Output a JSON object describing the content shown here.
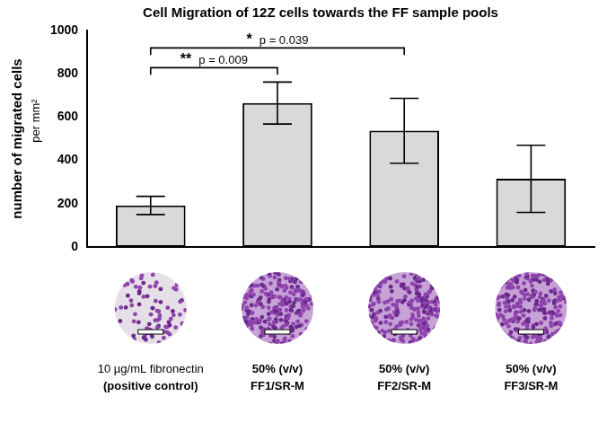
{
  "chart_data": {
    "type": "bar",
    "title": "Cell Migration of 12Z cells towards the FF sample pools",
    "y_label": "number of migrated cells",
    "y_label_unit": "per mm²",
    "categories": [
      [
        "10 µg/mL fibronectin",
        "(positive control)"
      ],
      [
        "50% (v/v)",
        "FF1/SR-M"
      ],
      [
        "50% (v/v)",
        "FF2/SR-M"
      ],
      [
        "50% (v/v)",
        "FF3/SR-M"
      ]
    ],
    "values": [
      192,
      665,
      537,
      315
    ],
    "errors": [
      42,
      97,
      150,
      155
    ],
    "color": "#d9d9d9",
    "ylim": [
      0,
      1000
    ],
    "yticks": [
      0,
      200,
      400,
      600,
      800,
      1000
    ],
    "grid": false,
    "comparisons": [
      {
        "groups": [
          0,
          1
        ],
        "stars": "**",
        "p_label": "p = 0.009"
      },
      {
        "groups": [
          0,
          2
        ],
        "stars": "*",
        "p_label": "p = 0.039"
      }
    ]
  }
}
